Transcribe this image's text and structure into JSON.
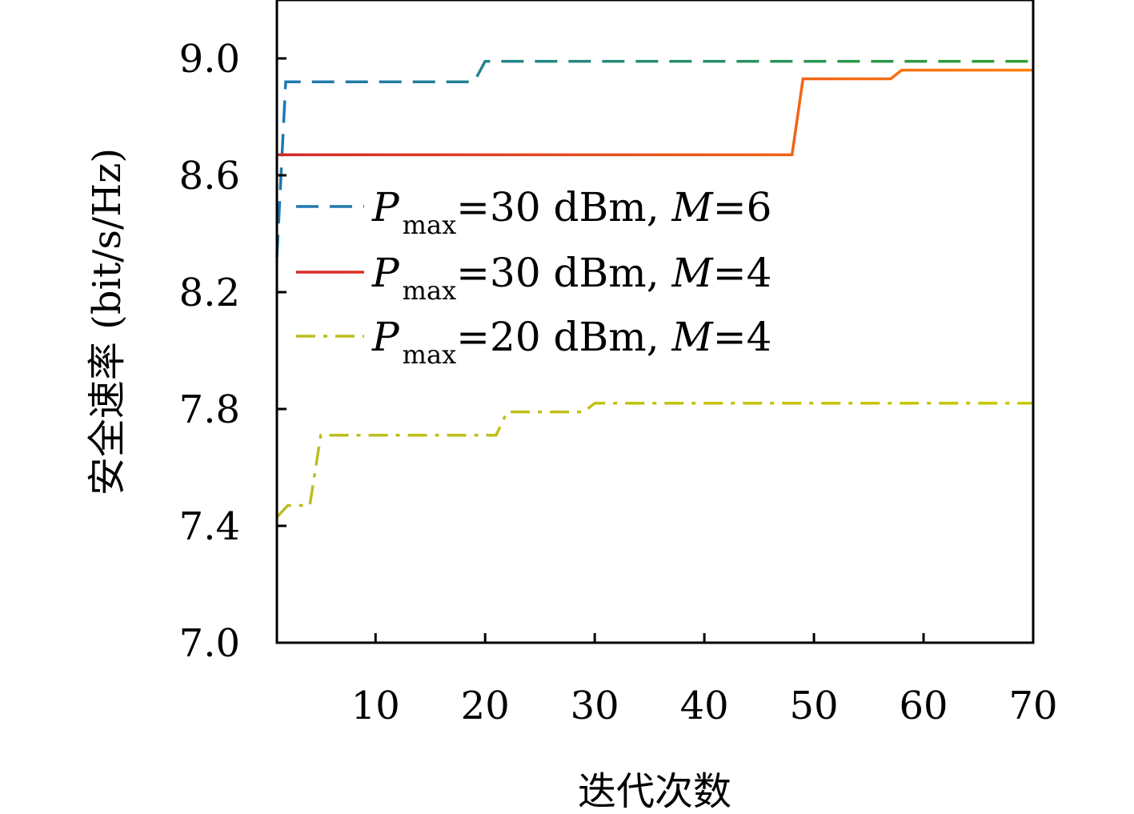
{
  "chart_data": {
    "type": "line",
    "xlabel": "迭代次数",
    "ylabel": "安全速率 (bit/s/Hz)",
    "xlim": [
      1,
      70
    ],
    "ylim": [
      7.0,
      9.2
    ],
    "xticks": [
      10,
      20,
      30,
      40,
      50,
      60,
      70
    ],
    "yticks": [
      7.0,
      7.4,
      7.8,
      8.2,
      8.6,
      9.0
    ],
    "ytick_labels": [
      "7.0",
      "7.4",
      "7.8",
      "8.2",
      "8.6",
      "9.0"
    ],
    "grid": false,
    "legend_position": "center-left",
    "series": [
      {
        "name": "Pmax=30 dBm, M=6",
        "legend": {
          "p": "P",
          "sub": "max",
          "mid": "=30 dBm, ",
          "m": "M",
          "tail": "=6"
        },
        "style": "dashed",
        "color_start": "#1f77b4",
        "color_end": "#2ca02c",
        "x": [
          1,
          1.8,
          2,
          19,
          20,
          70
        ],
        "y": [
          8.32,
          8.92,
          8.92,
          8.92,
          8.99,
          8.99
        ]
      },
      {
        "name": "Pmax=30 dBm, M=4",
        "legend": {
          "p": "P",
          "sub": "max",
          "mid": "=30 dBm, ",
          "m": "M",
          "tail": "=4"
        },
        "style": "solid",
        "color_start": "#d62728",
        "color_end": "#ff7f0e",
        "x": [
          1,
          2,
          48,
          49,
          57,
          58,
          70
        ],
        "y": [
          8.67,
          8.67,
          8.67,
          8.93,
          8.93,
          8.96,
          8.96
        ]
      },
      {
        "name": "Pmax=20 dBm, M=4",
        "legend": {
          "p": "P",
          "sub": "max",
          "mid": "=20 dBm, ",
          "m": "M",
          "tail": "=4"
        },
        "style": "dashdot",
        "color_start": "#bcbd22",
        "color_end": "#c7c700",
        "x": [
          1,
          2,
          3,
          4,
          5,
          21,
          22,
          29,
          30,
          70
        ],
        "y": [
          7.43,
          7.47,
          7.47,
          7.47,
          7.71,
          7.71,
          7.79,
          7.79,
          7.82,
          7.82
        ]
      }
    ]
  }
}
